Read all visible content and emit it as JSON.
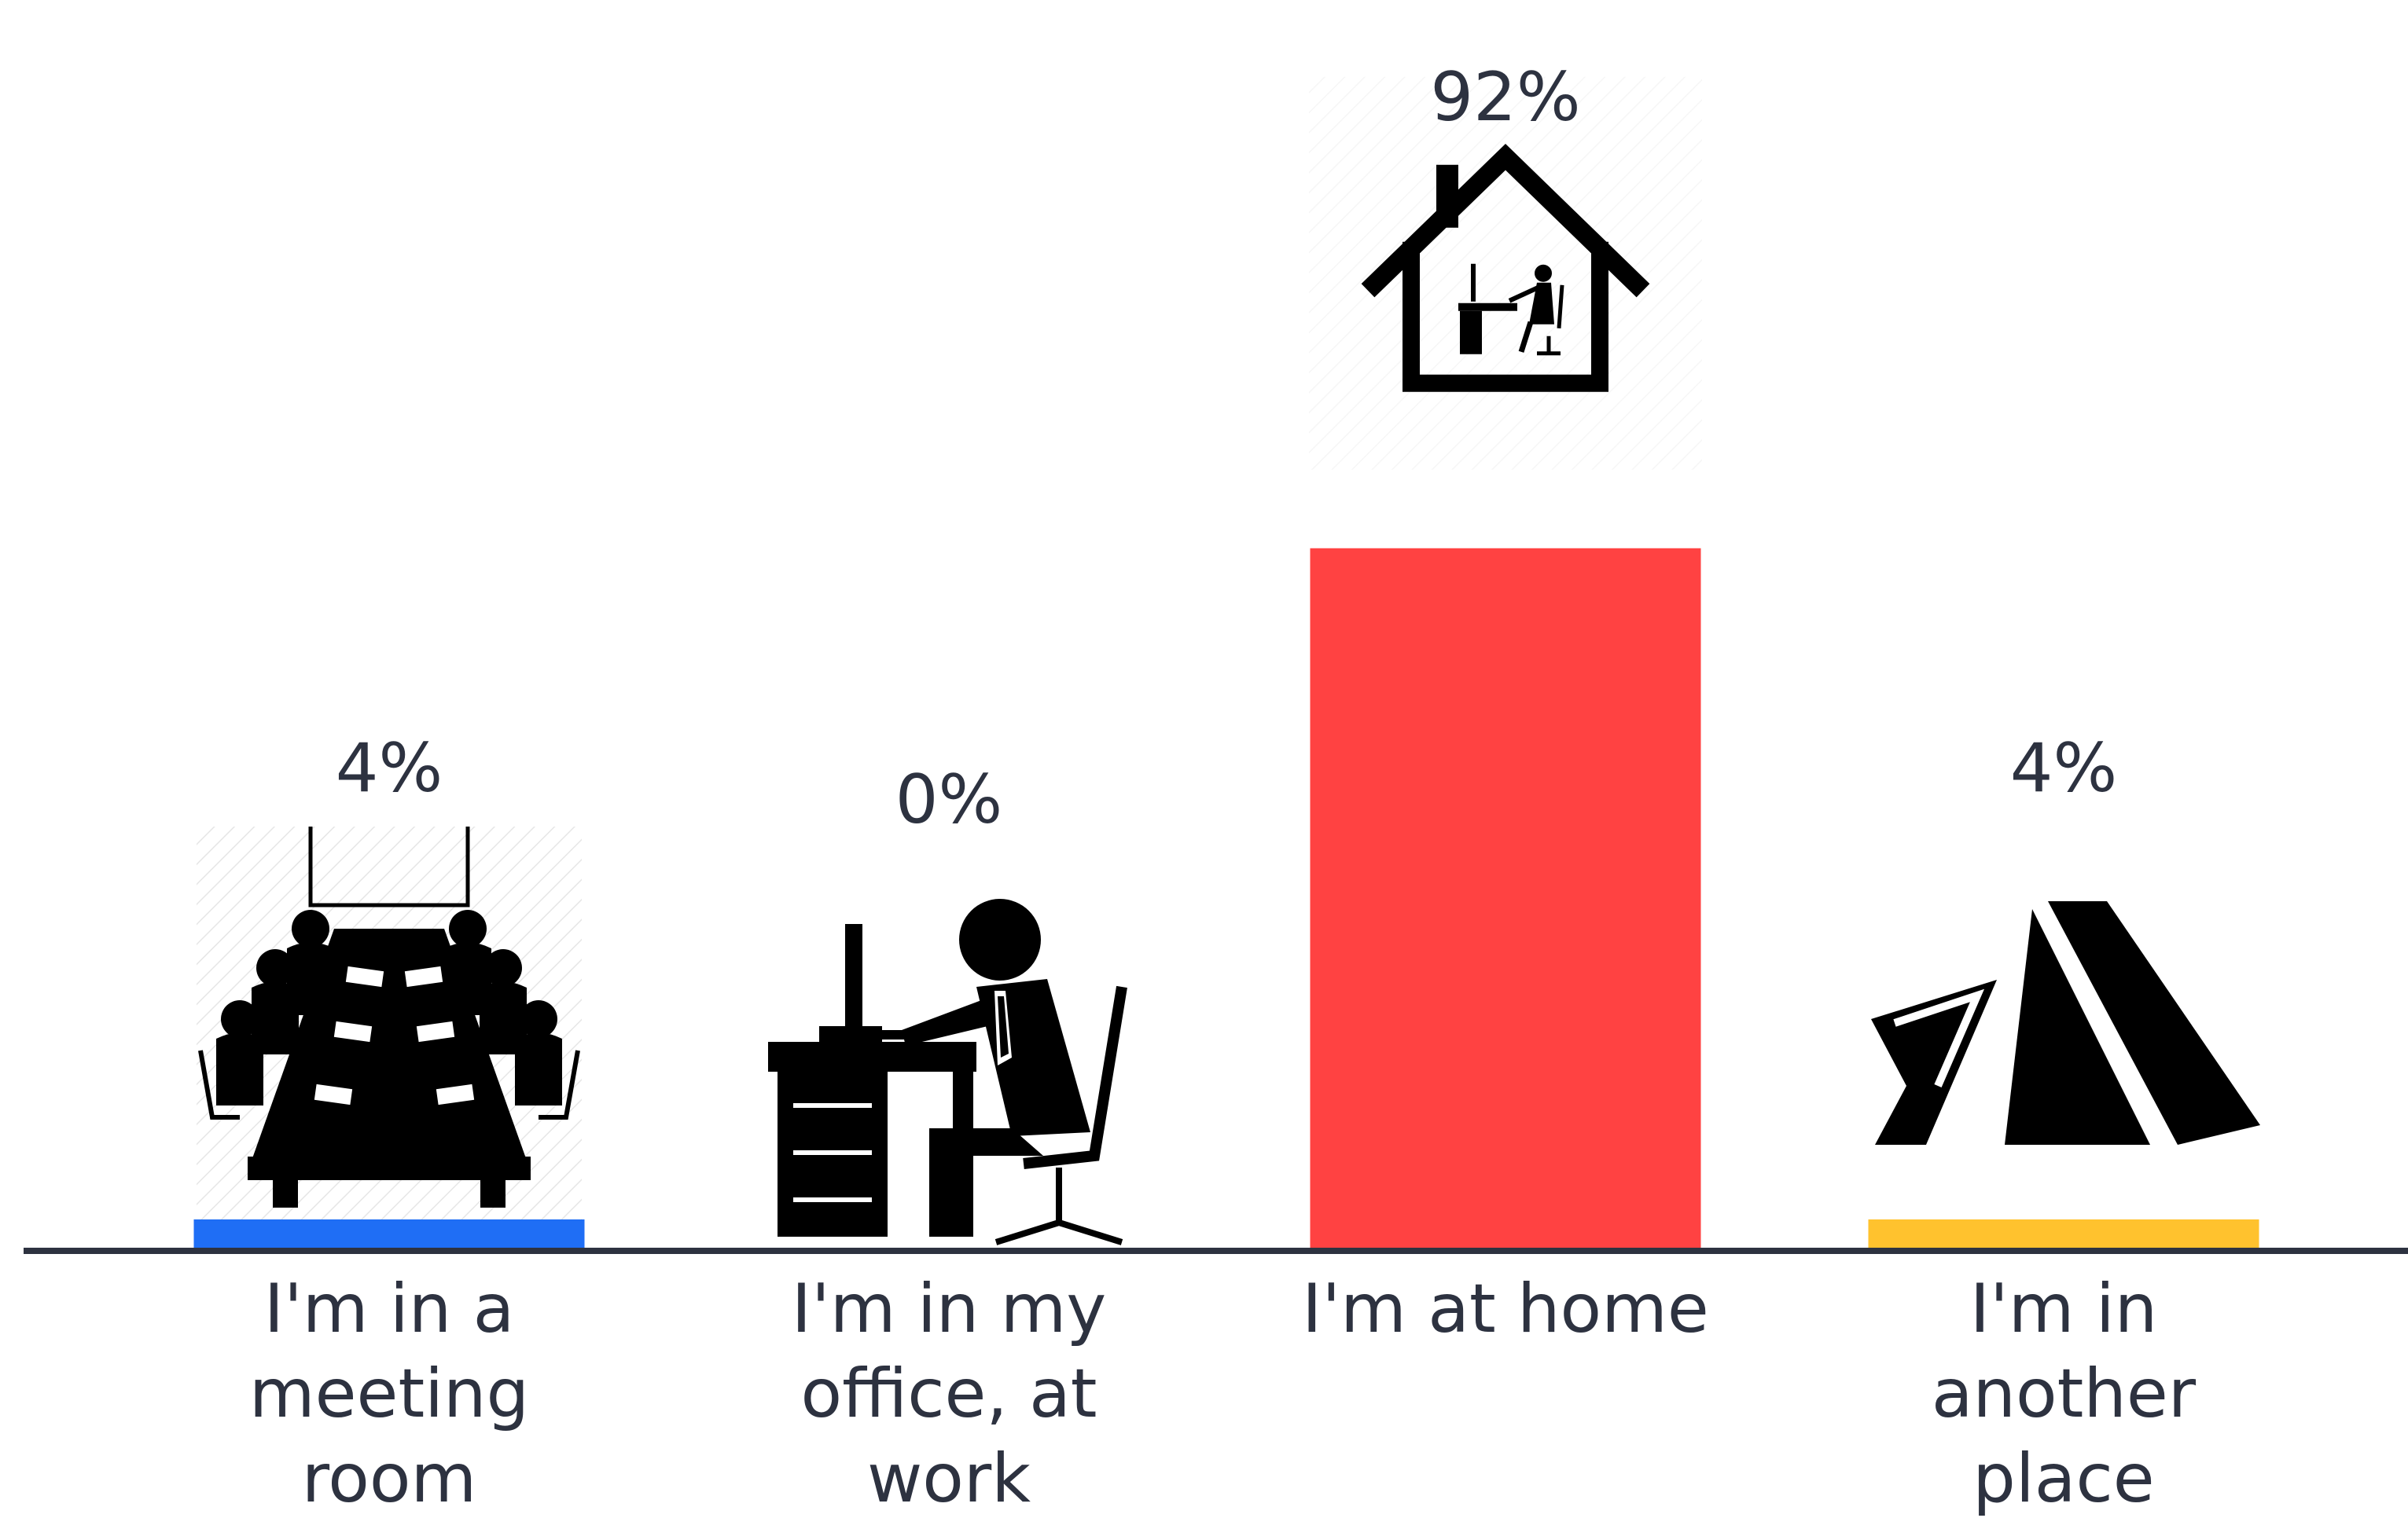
{
  "chart_data": {
    "type": "bar",
    "categories": [
      "I'm in a meeting room",
      "I'm in my office, at work",
      "I'm at home",
      "I'm in another place"
    ],
    "category_lines": [
      [
        "I'm in a",
        "meeting",
        "room"
      ],
      [
        "I'm in my",
        "office, at",
        "work"
      ],
      [
        "I'm at home"
      ],
      [
        "I'm in",
        "another",
        "place"
      ]
    ],
    "values": [
      4,
      0,
      92,
      4
    ],
    "value_labels": [
      "4%",
      "0%",
      "92%",
      "4%"
    ],
    "colors": [
      "#1f6ef5",
      "#000000",
      "#ff4242",
      "#ffc22e"
    ],
    "icons": [
      "meeting-table-icon",
      "office-desk-worker-icon",
      "house-home-office-icon",
      "tent-icon"
    ],
    "axis_color": "#2d3240",
    "ylim": [
      0,
      100
    ],
    "title": "",
    "xlabel": "",
    "ylabel": ""
  }
}
